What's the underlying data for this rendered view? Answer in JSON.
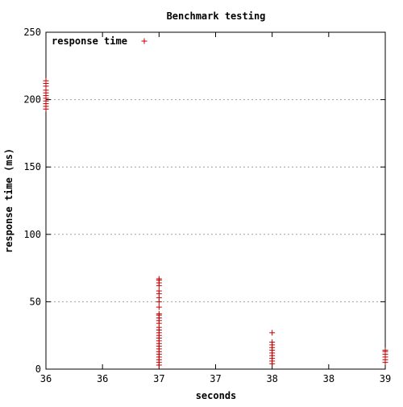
{
  "colors": {
    "series": "#c00000",
    "axis": "#000000",
    "grid": "#a0a0a0",
    "background": "#ffffff"
  },
  "chart_data": {
    "type": "scatter",
    "title": "Benchmark testing",
    "xlabel": "seconds",
    "ylabel": "response time (ms)",
    "xlim": [
      36,
      39
    ],
    "ylim": [
      0,
      250
    ],
    "grid": "horizontal dotted",
    "legend_position": "top-left",
    "x_ticks": [
      {
        "value": 36,
        "label": "36"
      },
      {
        "value": 36.5,
        "label": "36"
      },
      {
        "value": 37,
        "label": "37"
      },
      {
        "value": 37.5,
        "label": "37"
      },
      {
        "value": 38,
        "label": "38"
      },
      {
        "value": 38.5,
        "label": "38"
      },
      {
        "value": 39,
        "label": "39"
      }
    ],
    "y_ticks": [
      {
        "value": 0,
        "label": "0"
      },
      {
        "value": 50,
        "label": "50"
      },
      {
        "value": 100,
        "label": "100"
      },
      {
        "value": 150,
        "label": "150"
      },
      {
        "value": 200,
        "label": "200"
      },
      {
        "value": 250,
        "label": "250"
      }
    ],
    "series": [
      {
        "name": "response time",
        "marker": "+",
        "points": [
          [
            36,
            193
          ],
          [
            36,
            195
          ],
          [
            36,
            197
          ],
          [
            36,
            199
          ],
          [
            36,
            201
          ],
          [
            36,
            203
          ],
          [
            36,
            205
          ],
          [
            36,
            207
          ],
          [
            36,
            210
          ],
          [
            36,
            212
          ],
          [
            36,
            214
          ],
          [
            37,
            3
          ],
          [
            37,
            5
          ],
          [
            37,
            7
          ],
          [
            37,
            9
          ],
          [
            37,
            11
          ],
          [
            37,
            13
          ],
          [
            37,
            15
          ],
          [
            37,
            17
          ],
          [
            37,
            19
          ],
          [
            37,
            21
          ],
          [
            37,
            23
          ],
          [
            37,
            25
          ],
          [
            37,
            27
          ],
          [
            37,
            29
          ],
          [
            37,
            31
          ],
          [
            37,
            34
          ],
          [
            37,
            36
          ],
          [
            37,
            38
          ],
          [
            37,
            40
          ],
          [
            37,
            41
          ],
          [
            37,
            46
          ],
          [
            37,
            50
          ],
          [
            37,
            53
          ],
          [
            37,
            56
          ],
          [
            37,
            58
          ],
          [
            37,
            62
          ],
          [
            37,
            64
          ],
          [
            37,
            66
          ],
          [
            37,
            67
          ],
          [
            38,
            4
          ],
          [
            38,
            6
          ],
          [
            38,
            8
          ],
          [
            38,
            10
          ],
          [
            38,
            12
          ],
          [
            38,
            14
          ],
          [
            38,
            16
          ],
          [
            38,
            18
          ],
          [
            38,
            20
          ],
          [
            38,
            27
          ],
          [
            39,
            5
          ],
          [
            39,
            7
          ],
          [
            39,
            9
          ],
          [
            39,
            11
          ],
          [
            39,
            13
          ],
          [
            39,
            14
          ]
        ]
      }
    ]
  }
}
